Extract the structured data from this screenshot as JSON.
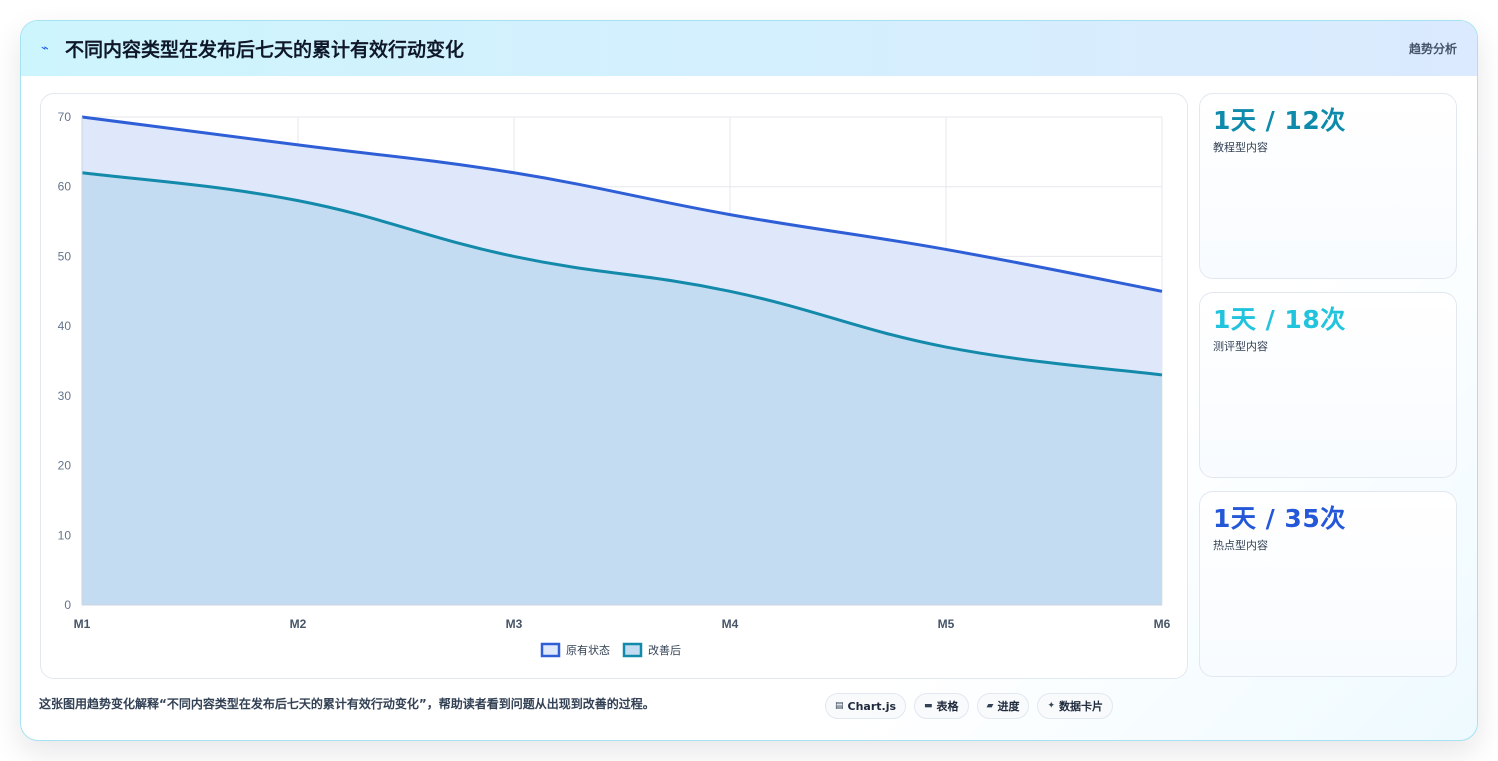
{
  "header": {
    "icon": "lightning-icon",
    "title": "不同内容类型在发布后七天的累计有效行动变化",
    "tag": "趋势分析"
  },
  "chart_data": {
    "type": "area",
    "categories": [
      "M1",
      "M2",
      "M3",
      "M4",
      "M5",
      "M6"
    ],
    "series": [
      {
        "name": "原有状态",
        "values": [
          70,
          66,
          62,
          56,
          51,
          45
        ],
        "color": "#2f5fd6",
        "fill": "#dfe8fb"
      },
      {
        "name": "改善后",
        "values": [
          62,
          58,
          50,
          45,
          37,
          33
        ],
        "color": "#148aab",
        "fill": "#c4dcf1"
      }
    ],
    "ylim": [
      0,
      70
    ],
    "yticks": [
      0,
      10,
      20,
      30,
      40,
      50,
      60,
      70
    ],
    "grid": true,
    "legend": "bottom",
    "title": "",
    "xlabel": "",
    "ylabel": ""
  },
  "stats": [
    {
      "value": "1天 / 12次",
      "label": "教程型内容",
      "color": "#0e8aab"
    },
    {
      "value": "1天 / 18次",
      "label": "测评型内容",
      "color": "#22c3dd"
    },
    {
      "value": "1天 / 35次",
      "label": "热点型内容",
      "color": "#2458d8"
    }
  ],
  "footer": {
    "text": "这张图用趋势变化解释“不同内容类型在发布后七天的累计有效行动变化”，帮助读者看到问题从出现到改善的过程。",
    "chips": [
      {
        "icon": "chart-icon",
        "label": "Chart.js"
      },
      {
        "icon": "table-icon",
        "label": "表格"
      },
      {
        "icon": "progress-icon",
        "label": "进度"
      },
      {
        "icon": "sparkle-icon",
        "label": "数据卡片"
      }
    ]
  }
}
